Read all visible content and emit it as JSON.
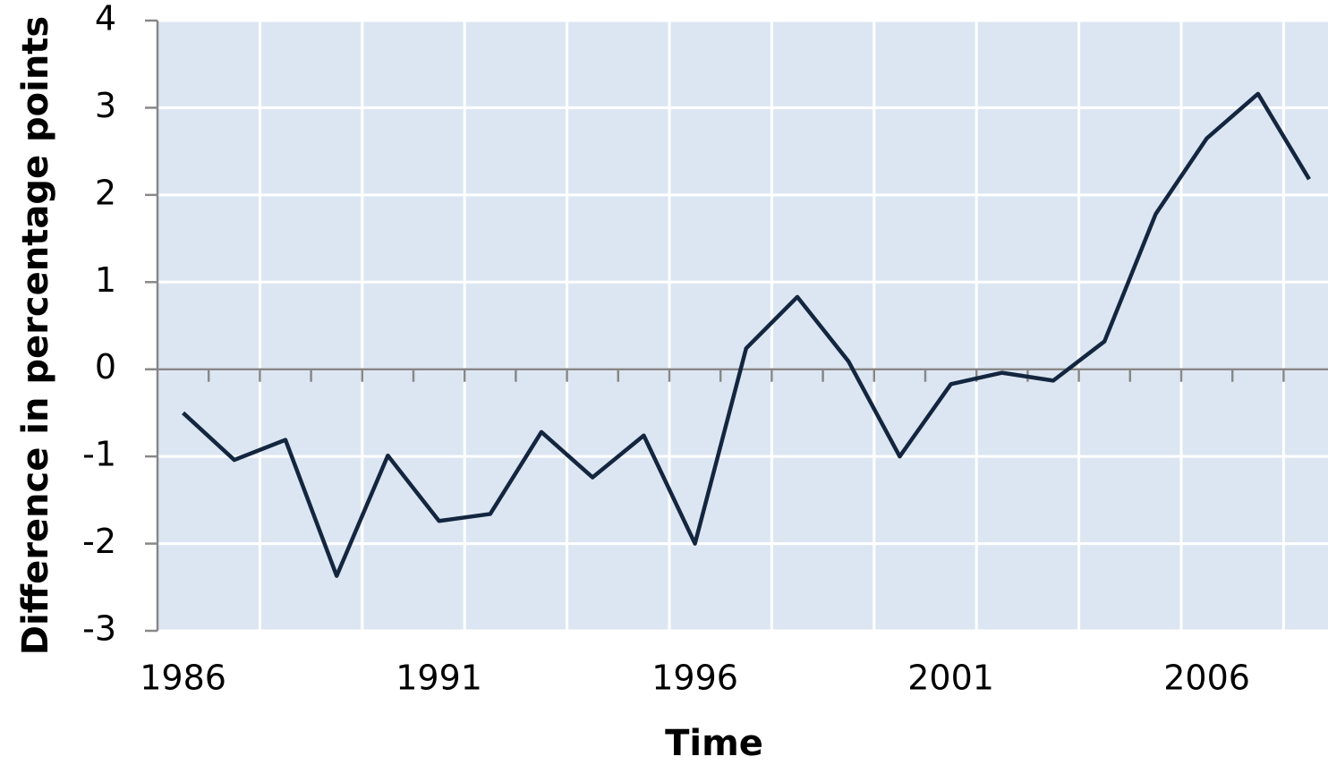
{
  "chart_data": {
    "type": "line",
    "x_label": "Time",
    "y_label": "Difference in percentage points",
    "categories": [
      "1986",
      null,
      null,
      null,
      null,
      "1991",
      null,
      null,
      null,
      null,
      "1996",
      null,
      null,
      null,
      null,
      "2001",
      null,
      null,
      null,
      null,
      "2006",
      null,
      null
    ],
    "series": [
      {
        "color": "#14263f",
        "values": [
          -0.5,
          -1.04,
          -0.81,
          -2.37,
          -0.99,
          -1.74,
          -1.66,
          -0.72,
          -1.24,
          -0.76,
          -2.0,
          0.24,
          0.83,
          0.09,
          -1.0,
          -0.17,
          -0.04,
          -0.13,
          0.32,
          1.78,
          2.65,
          3.16,
          2.18
        ]
      }
    ],
    "ylim": [
      -3,
      4
    ],
    "yticks": [
      -3,
      -2,
      -1,
      0,
      1,
      2,
      3,
      4
    ],
    "grid": true
  }
}
